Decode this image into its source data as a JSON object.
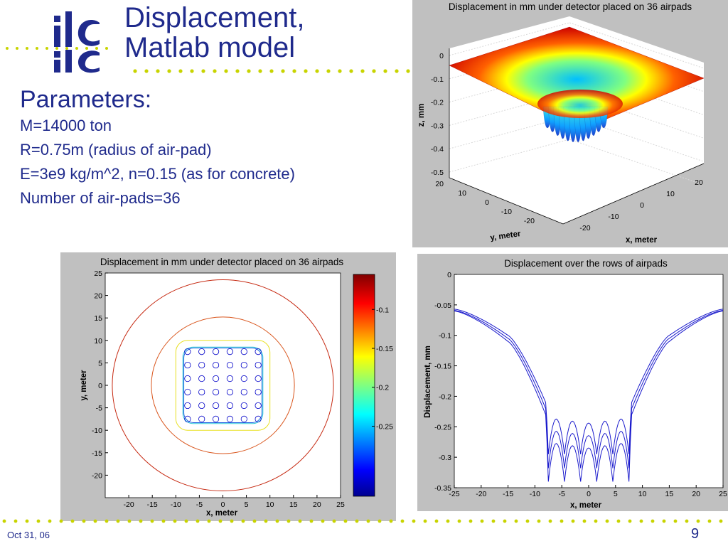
{
  "slide": {
    "title_line1": "Displacement,",
    "title_line2": "Matlab model",
    "logo_text": "ilc",
    "params_heading": "Parameters:",
    "params": [
      "M=14000 ton",
      "R=0.75m  (radius of air-pad)",
      "E=3e9 kg/m^2, n=0.15 (as for concrete)",
      "Number of air-pads=36"
    ],
    "date": "Oct 31, 06",
    "page_number": "9",
    "text_color": "#1f2a8c",
    "dot_color": "#c8d400"
  },
  "chart_data": [
    {
      "type": "surface",
      "title": "Displacement in mm under detector placed on 36 airpads",
      "xlabel": "x, meter",
      "ylabel": "y, meter",
      "zlabel": "z, mm",
      "xlim": [
        -25,
        25
      ],
      "ylim": [
        -25,
        25
      ],
      "zlim": [
        -0.5,
        0
      ],
      "x_ticks": [
        "-20",
        "-10",
        "0",
        "10",
        "20"
      ],
      "y_ticks": [
        "-20",
        "-10",
        "0",
        "10",
        "20"
      ],
      "z_ticks": [
        "0",
        "-0.1",
        "-0.2",
        "-0.3",
        "-0.4",
        "-0.5"
      ],
      "airpads_grid": [
        6,
        6
      ],
      "z_min": -0.35,
      "z_edge": -0.06,
      "colormap": "jet",
      "grid": true
    },
    {
      "type": "contour",
      "title": "Displacement in mm under detector placed on 36 airpads",
      "xlabel": "x, meter",
      "ylabel": "y, meter",
      "xlim": [
        -25,
        25
      ],
      "ylim": [
        -25,
        25
      ],
      "x_ticks": [
        "-20",
        "-15",
        "-10",
        "-5",
        "0",
        "5",
        "10",
        "15",
        "20",
        "25"
      ],
      "y_ticks": [
        "25",
        "20",
        "15",
        "10",
        "5",
        "0",
        "-5",
        "-10",
        "-15",
        "-20"
      ],
      "airpad_centers": [
        -7.5,
        -4.5,
        -1.5,
        1.5,
        4.5,
        7.5
      ],
      "contour_levels": [
        {
          "level": -0.06,
          "radius": 23.5,
          "color": "#c62a12"
        },
        {
          "level": -0.09,
          "radius": 15.2,
          "color": "#d9551c"
        },
        {
          "level": -0.17,
          "half_size": 10.0,
          "color": "#e8e020"
        },
        {
          "level": -0.21,
          "half_size": 8.5,
          "color": "#28c8d8"
        },
        {
          "level": -0.25,
          "half_size": 8.3,
          "color": "#2060e0"
        }
      ],
      "colorbar": {
        "ticks": [
          "-0.1",
          "-0.15",
          "-0.2",
          "-0.25"
        ],
        "values": [
          -0.1,
          -0.15,
          -0.2,
          -0.25
        ],
        "range": [
          -0.34,
          -0.055
        ]
      }
    },
    {
      "type": "line",
      "title": "Displacement over the rows of airpads",
      "xlabel": "x, meter",
      "ylabel": "Displacement, mm",
      "xlim": [
        -25,
        25
      ],
      "ylim": [
        -0.35,
        0
      ],
      "x_ticks": [
        "-25",
        "-20",
        "-15",
        "-10",
        "-5",
        "0",
        "5",
        "10",
        "15",
        "20",
        "25"
      ],
      "y_ticks": [
        "0",
        "-0.05",
        "-0.1",
        "-0.15",
        "-0.2",
        "-0.25",
        "-0.3",
        "-0.35"
      ],
      "airpad_centers": [
        -7.5,
        -4.5,
        -1.5,
        1.5,
        4.5,
        7.5
      ],
      "series": [
        {
          "values_at": {
            "edge": -0.057,
            "x_15": -0.1,
            "x_8": -0.21,
            "valley": -0.295,
            "peak": -0.235
          }
        },
        {
          "values_at": {
            "edge": -0.059,
            "x_15": -0.105,
            "x_8": -0.22,
            "valley": -0.318,
            "peak": -0.255
          }
        },
        {
          "values_at": {
            "edge": -0.06,
            "x_15": -0.11,
            "x_8": -0.23,
            "valley": -0.34,
            "peak": -0.275
          }
        }
      ],
      "line_color": "#1a1acc"
    }
  ]
}
